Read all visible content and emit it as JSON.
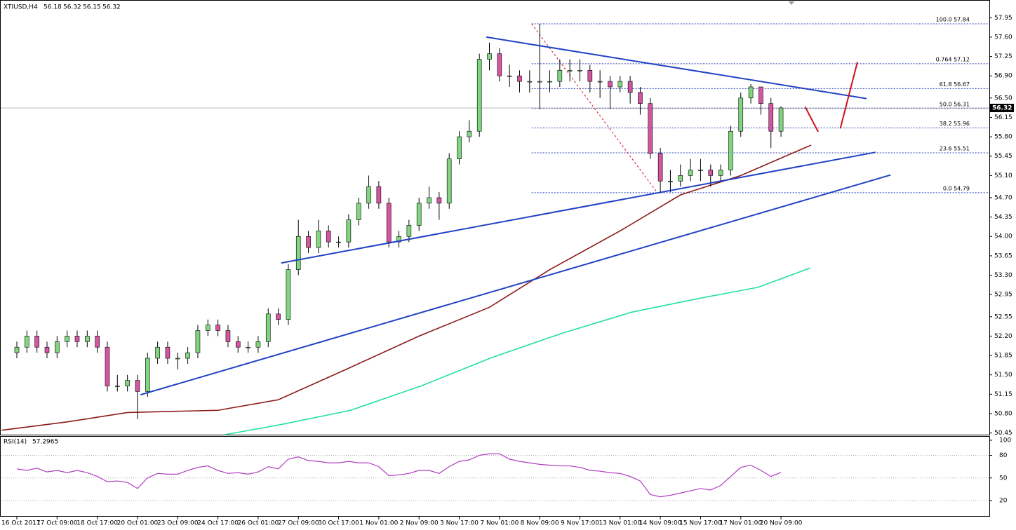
{
  "chart_data": [
    {
      "type": "candlestick",
      "symbol": "XTIUSD,H4",
      "legend_values": [
        56.18,
        56.32,
        56.15,
        56.32
      ],
      "categories": [
        "16 Oct 2017",
        null,
        null,
        null,
        "17 Oct 09:00",
        null,
        null,
        null,
        "18 Oct 17:00",
        null,
        null,
        null,
        "20 Oct 01:00",
        null,
        null,
        null,
        "23 Oct 09:00",
        null,
        null,
        null,
        "24 Oct 17:00",
        null,
        null,
        null,
        "26 Oct 01:00",
        null,
        null,
        null,
        "27 Oct 09:00",
        null,
        null,
        null,
        "30 Oct 17:00",
        null,
        null,
        null,
        "1 Nov 01:00",
        null,
        null,
        null,
        "2 Nov 09:00",
        null,
        null,
        null,
        "3 Nov 17:00",
        null,
        null,
        null,
        "7 Nov 01:00",
        null,
        null,
        null,
        "8 Nov 09:00",
        null,
        null,
        null,
        "9 Nov 17:00",
        null,
        null,
        null,
        "13 Nov 01:00",
        null,
        null,
        null,
        "14 Nov 09:00",
        null,
        null,
        null,
        "15 Nov 17:00",
        null,
        null,
        null,
        "17 Nov 01:00",
        null,
        null,
        null,
        "20 Nov 09:00"
      ],
      "open": [
        51.9,
        52.0,
        52.2,
        52.0,
        51.9,
        52.1,
        52.2,
        52.1,
        52.2,
        52.0,
        51.3,
        51.3,
        51.4,
        51.2,
        51.8,
        52.0,
        51.8,
        51.8,
        51.9,
        52.3,
        52.4,
        52.3,
        52.1,
        52.0,
        52.0,
        52.1,
        52.6,
        52.5,
        53.4,
        54.0,
        53.8,
        54.1,
        53.9,
        53.9,
        54.3,
        54.6,
        54.9,
        54.6,
        53.9,
        54.0,
        54.2,
        54.6,
        54.7,
        54.6,
        55.4,
        55.8,
        55.9,
        57.2,
        57.3,
        56.9,
        56.9,
        56.8,
        56.8,
        56.8,
        56.8,
        57.0,
        57.0,
        57.0,
        56.8,
        56.8,
        56.7,
        56.8,
        56.6,
        56.4,
        55.5,
        55.0,
        55.0,
        55.1,
        55.2,
        55.2,
        55.1,
        55.2,
        55.9,
        56.5,
        56.7,
        56.4,
        55.9
      ],
      "high": [
        52.1,
        52.3,
        52.3,
        52.1,
        52.2,
        52.3,
        52.3,
        52.3,
        52.3,
        52.1,
        51.5,
        51.5,
        51.5,
        51.9,
        52.1,
        52.1,
        51.9,
        52.0,
        52.4,
        52.5,
        52.5,
        52.4,
        52.2,
        52.1,
        52.2,
        52.7,
        52.7,
        53.5,
        54.3,
        54.1,
        54.3,
        54.2,
        54.0,
        54.4,
        54.7,
        55.1,
        55.0,
        54.7,
        54.1,
        54.3,
        54.7,
        54.9,
        54.8,
        55.5,
        55.9,
        56.1,
        57.3,
        57.5,
        57.4,
        57.1,
        57.0,
        57.0,
        57.84,
        57.0,
        57.2,
        57.2,
        57.2,
        57.1,
        57.0,
        56.9,
        56.9,
        56.9,
        56.7,
        56.5,
        55.6,
        55.2,
        55.3,
        55.4,
        55.4,
        55.3,
        55.3,
        56.0,
        56.6,
        56.75,
        56.7,
        56.5,
        56.35
      ],
      "low": [
        51.8,
        51.9,
        51.9,
        51.8,
        51.8,
        52.0,
        52.0,
        52.0,
        51.9,
        51.2,
        51.2,
        51.2,
        50.7,
        51.1,
        51.7,
        51.7,
        51.6,
        51.7,
        51.8,
        52.2,
        52.2,
        52.0,
        51.9,
        51.9,
        51.9,
        52.0,
        52.4,
        52.4,
        53.3,
        53.7,
        53.7,
        53.8,
        53.8,
        53.8,
        54.2,
        54.5,
        54.5,
        53.8,
        53.8,
        53.9,
        54.1,
        54.5,
        54.3,
        54.5,
        55.3,
        55.7,
        55.8,
        57.0,
        56.8,
        56.7,
        56.6,
        56.6,
        56.3,
        56.6,
        56.7,
        56.8,
        56.8,
        56.6,
        56.5,
        56.3,
        56.6,
        56.4,
        56.2,
        55.4,
        54.79,
        54.8,
        54.9,
        55.0,
        55.0,
        54.9,
        55.0,
        55.1,
        55.8,
        56.4,
        56.2,
        55.6,
        55.8
      ],
      "close": [
        52.0,
        52.2,
        52.0,
        51.9,
        52.1,
        52.2,
        52.1,
        52.2,
        52.0,
        51.3,
        51.3,
        51.4,
        51.2,
        51.8,
        52.0,
        51.8,
        51.8,
        51.9,
        52.3,
        52.4,
        52.3,
        52.1,
        52.0,
        52.0,
        52.1,
        52.6,
        52.5,
        53.4,
        54.0,
        53.8,
        54.1,
        53.9,
        53.9,
        54.3,
        54.6,
        54.9,
        54.6,
        53.9,
        54.0,
        54.2,
        54.6,
        54.7,
        54.6,
        55.4,
        55.8,
        55.9,
        57.2,
        57.3,
        56.9,
        56.9,
        56.8,
        56.8,
        56.8,
        56.8,
        57.0,
        57.0,
        57.0,
        56.8,
        56.8,
        56.7,
        56.8,
        56.6,
        56.4,
        55.5,
        55.0,
        55.0,
        55.1,
        55.2,
        55.2,
        55.1,
        55.2,
        55.9,
        56.5,
        56.7,
        56.4,
        55.9,
        56.32
      ],
      "up_color": "#7fd67f",
      "down_color": "#d455a0",
      "bid": 56.32,
      "moving_averages": [
        {
          "color": "#8b1a1a",
          "x": [
            -1.5,
            5,
            11,
            20,
            26,
            33,
            40,
            47,
            53,
            60,
            66,
            72,
            79
          ],
          "values": [
            50.5,
            50.65,
            50.82,
            50.86,
            51.05,
            51.62,
            52.2,
            52.72,
            53.4,
            54.1,
            54.75,
            55.1,
            55.65
          ]
        },
        {
          "color": "#22e39a",
          "x": [
            20.7,
            26.2,
            33.2,
            40.2,
            47.2,
            54.2,
            61.1,
            68.1,
            73.7,
            78.9
          ],
          "values": [
            50.42,
            50.6,
            50.86,
            51.3,
            51.81,
            52.25,
            52.63,
            52.89,
            53.08,
            53.43
          ]
        }
      ],
      "trendlines": [
        {
          "color": "#2143c4",
          "x": [
            26.3,
            85.4
          ],
          "values": [
            53.52,
            55.52
          ]
        },
        {
          "color": "#2143c4",
          "x": [
            12.3,
            86.9
          ],
          "values": [
            51.14,
            55.11
          ]
        },
        {
          "color": "#2143c4",
          "x": [
            46.7,
            84.5
          ],
          "values": [
            57.6,
            56.49
          ]
        },
        {
          "color": "#d0101c",
          "x": [
            78.4,
            79.7
          ],
          "values": [
            56.34,
            55.89
          ]
        },
        {
          "color": "#d0101c",
          "x": [
            81.9,
            83.6
          ],
          "values": [
            55.95,
            57.15
          ]
        }
      ],
      "fib_levels": [
        {
          "value": 57.84,
          "label": "100.0 57.84"
        },
        {
          "value": 57.12,
          "label": "0.764 57.12"
        },
        {
          "value": 56.67,
          "label": "61.8 56.67"
        },
        {
          "value": 56.31,
          "label": "50.0 56.31"
        },
        {
          "value": 55.96,
          "label": "38.2 55.96"
        },
        {
          "value": 55.51,
          "label": "23.6 55.51"
        },
        {
          "value": 54.79,
          "label": "0.0 54.79"
        }
      ],
      "ylim": [
        50.42,
        58.27
      ],
      "yticks": [
        {
          "value": 57.95,
          "label": "57.95"
        },
        {
          "value": 57.6,
          "label": "57.60"
        },
        {
          "value": 57.25,
          "label": "57.25"
        },
        {
          "value": 56.9,
          "label": "56.90"
        },
        {
          "value": 56.5,
          "label": "56.50"
        },
        {
          "value": 56.15,
          "label": "56.15"
        },
        {
          "value": 55.8,
          "label": "55.80"
        },
        {
          "value": 55.45,
          "label": "55.45"
        },
        {
          "value": 55.1,
          "label": "55.10"
        },
        {
          "value": 54.7,
          "label": "54.70"
        },
        {
          "value": 54.35,
          "label": "54.35"
        },
        {
          "value": 54.0,
          "label": "54.00"
        },
        {
          "value": 53.65,
          "label": "53.65"
        },
        {
          "value": 53.3,
          "label": "53.30"
        },
        {
          "value": 52.95,
          "label": "52.95"
        },
        {
          "value": 52.55,
          "label": "52.55"
        },
        {
          "value": 52.2,
          "label": "52.20"
        },
        {
          "value": 51.85,
          "label": "51.85"
        },
        {
          "value": 51.5,
          "label": "51.50"
        },
        {
          "value": 51.15,
          "label": "51.15"
        },
        {
          "value": 50.8,
          "label": "50.80"
        },
        {
          "value": 50.45,
          "label": "50.45"
        }
      ]
    },
    {
      "type": "line",
      "label": "RSI(14)",
      "last": 57.2965,
      "color": "#b03cc0",
      "values": [
        62,
        60,
        63,
        58,
        60,
        57,
        60,
        57,
        52,
        45,
        46,
        44,
        36,
        50,
        56,
        55,
        55,
        60,
        64,
        66,
        60,
        56,
        57,
        55,
        58,
        65,
        62,
        75,
        78,
        73,
        72,
        70,
        70,
        72,
        70,
        70,
        65,
        53,
        54,
        56,
        60,
        60,
        56,
        65,
        72,
        74,
        80,
        82,
        82,
        75,
        72,
        70,
        68,
        67,
        66,
        66,
        64,
        60,
        59,
        57,
        56,
        52,
        46,
        28,
        25,
        27,
        30,
        33,
        36,
        34,
        40,
        52,
        64,
        67,
        60,
        52,
        57.3
      ],
      "ylim": [
        0,
        100
      ],
      "yticks": [
        100,
        80,
        50,
        20
      ],
      "levels": [
        80,
        50,
        20
      ]
    }
  ]
}
